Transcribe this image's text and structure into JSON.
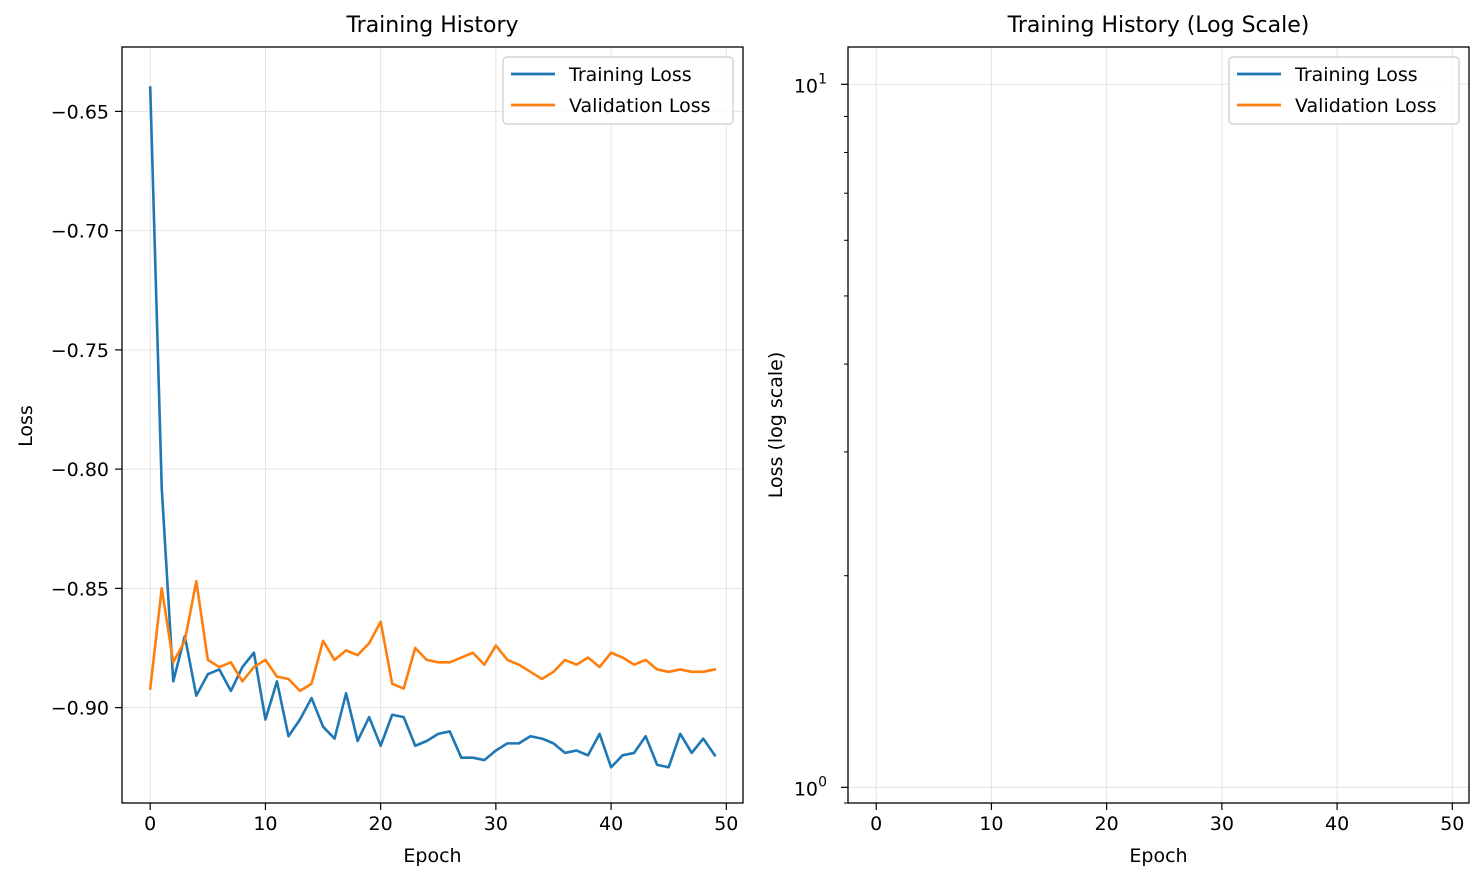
{
  "chart_data": [
    {
      "type": "line",
      "title": "Training History",
      "xlabel": "Epoch",
      "ylabel": "Loss",
      "xlim": [
        -2.45,
        51.45
      ],
      "ylim": [
        -0.94,
        -0.623
      ],
      "xticks": [
        0,
        10,
        20,
        30,
        40,
        50
      ],
      "yticks": [
        -0.65,
        -0.7,
        -0.75,
        -0.8,
        -0.85,
        -0.9
      ],
      "ytick_labels": [
        "−0.65",
        "−0.70",
        "−0.75",
        "−0.80",
        "−0.85",
        "−0.90"
      ],
      "grid": true,
      "legend_position": "upper right",
      "x": [
        0,
        1,
        2,
        3,
        4,
        5,
        6,
        7,
        8,
        9,
        10,
        11,
        12,
        13,
        14,
        15,
        16,
        17,
        18,
        19,
        20,
        21,
        22,
        23,
        24,
        25,
        26,
        27,
        28,
        29,
        30,
        31,
        32,
        33,
        34,
        35,
        36,
        37,
        38,
        39,
        40,
        41,
        42,
        43,
        44,
        45,
        46,
        47,
        48,
        49
      ],
      "series": [
        {
          "name": "Training Loss",
          "color": "#1f77b4",
          "values": [
            -0.64,
            -0.808,
            -0.889,
            -0.87,
            -0.895,
            -0.886,
            -0.884,
            -0.893,
            -0.883,
            -0.877,
            -0.905,
            -0.889,
            -0.912,
            -0.905,
            -0.896,
            -0.908,
            -0.913,
            -0.894,
            -0.914,
            -0.904,
            -0.916,
            -0.903,
            -0.904,
            -0.916,
            -0.914,
            -0.911,
            -0.91,
            -0.921,
            -0.921,
            -0.922,
            -0.918,
            -0.915,
            -0.915,
            -0.912,
            -0.913,
            -0.915,
            -0.919,
            -0.918,
            -0.92,
            -0.911,
            -0.925,
            -0.92,
            -0.919,
            -0.912,
            -0.924,
            -0.925,
            -0.911,
            -0.919,
            -0.913,
            -0.92
          ]
        },
        {
          "name": "Validation Loss",
          "color": "#ff7f0e",
          "values": [
            -0.892,
            -0.85,
            -0.881,
            -0.872,
            -0.847,
            -0.88,
            -0.883,
            -0.881,
            -0.889,
            -0.883,
            -0.88,
            -0.887,
            -0.888,
            -0.893,
            -0.89,
            -0.872,
            -0.88,
            -0.876,
            -0.878,
            -0.873,
            -0.864,
            -0.89,
            -0.892,
            -0.875,
            -0.88,
            -0.881,
            -0.881,
            -0.879,
            -0.877,
            -0.882,
            -0.874,
            -0.88,
            -0.882,
            -0.885,
            -0.888,
            -0.885,
            -0.88,
            -0.882,
            -0.879,
            -0.883,
            -0.877,
            -0.879,
            -0.882,
            -0.88,
            -0.884,
            -0.885,
            -0.884,
            -0.885,
            -0.885,
            -0.884
          ]
        }
      ]
    },
    {
      "type": "line",
      "title": "Training History (Log Scale)",
      "xlabel": "Epoch",
      "ylabel": "Loss (log scale)",
      "yscale": "log",
      "xlim": [
        -2.45,
        51.45
      ],
      "ylim": [
        0.95,
        11.3
      ],
      "xticks": [
        0,
        10,
        20,
        30,
        40,
        50
      ],
      "yticks": [
        1,
        10
      ],
      "ytick_labels": [
        {
          "base": "10",
          "exp": "0"
        },
        {
          "base": "10",
          "exp": "1"
        }
      ],
      "grid": true,
      "legend_position": "upper right",
      "series": [
        {
          "name": "Training Loss",
          "color": "#1f77b4",
          "values": []
        },
        {
          "name": "Validation Loss",
          "color": "#ff7f0e",
          "values": []
        }
      ]
    }
  ]
}
